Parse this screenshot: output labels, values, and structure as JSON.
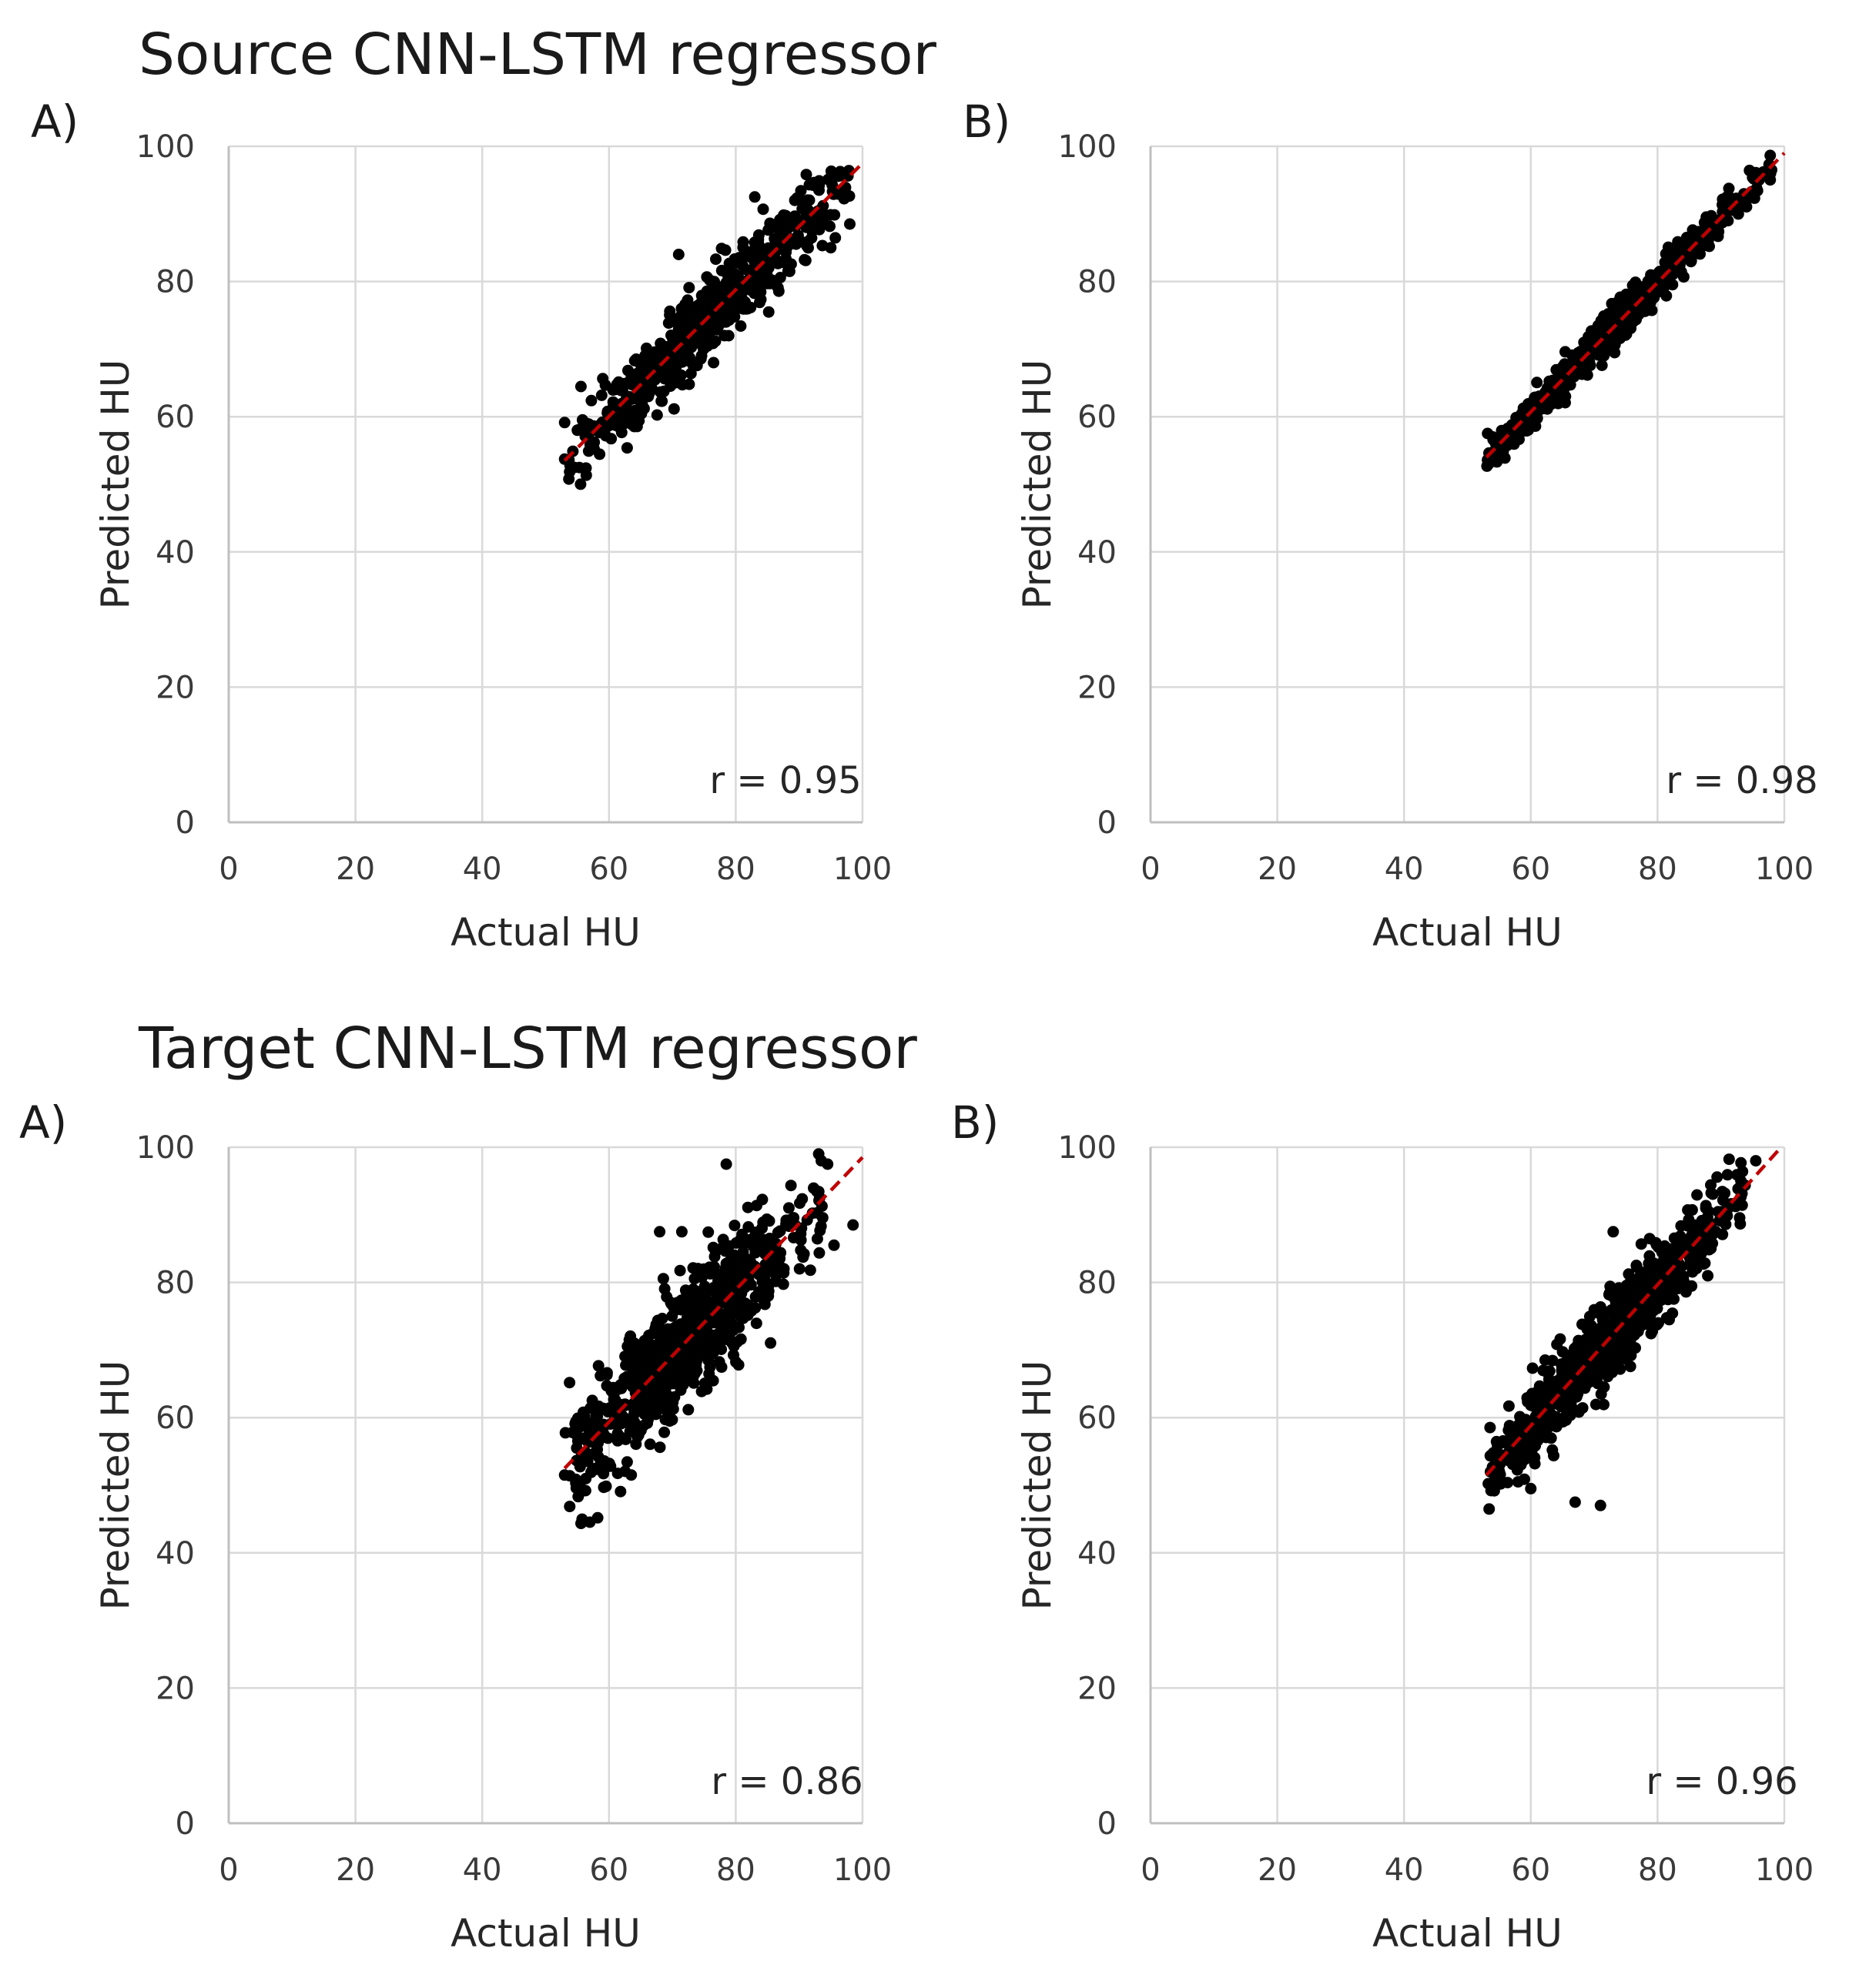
{
  "sections": [
    {
      "title": "Source CNN-LSTM regressor"
    },
    {
      "title": "Target CNN-LSTM regressor"
    }
  ],
  "chart_data": [
    {
      "section": "Source CNN-LSTM regressor",
      "panel": "A)",
      "type": "scatter",
      "xlabel": "Actual HU",
      "ylabel": "Predicted HU",
      "xlim": [
        0,
        100
      ],
      "ylim": [
        0,
        100
      ],
      "xticks": [
        "0",
        "20",
        "40",
        "60",
        "80",
        "100"
      ],
      "yticks": [
        "0",
        "20",
        "40",
        "60",
        "80",
        "100"
      ],
      "grid": true,
      "annotation": "r = 0.95",
      "point_count": 650,
      "x_range": [
        53,
        98
      ],
      "point_spread": 2.8,
      "seed": 11,
      "trendline": {
        "x": [
          53,
          100
        ],
        "y": [
          53.5,
          97.5
        ]
      },
      "outliers": [
        [
          83,
          92.5
        ],
        [
          71,
          84
        ],
        [
          76.5,
          68
        ],
        [
          98,
          88.5
        ],
        [
          95,
          85
        ],
        [
          55,
          58
        ]
      ]
    },
    {
      "section": "Source CNN-LSTM regressor",
      "panel": "B)",
      "type": "scatter",
      "xlabel": "Actual HU",
      "ylabel": "Predicted HU",
      "xlim": [
        0,
        100
      ],
      "ylim": [
        0,
        100
      ],
      "xticks": [
        "0",
        "20",
        "40",
        "60",
        "80",
        "100"
      ],
      "yticks": [
        "0",
        "20",
        "40",
        "60",
        "80",
        "100"
      ],
      "grid": true,
      "annotation": "r = 0.98",
      "point_count": 650,
      "x_range": [
        53,
        98
      ],
      "point_spread": 1.3,
      "seed": 23,
      "trendline": {
        "x": [
          53,
          100
        ],
        "y": [
          54,
          99
        ]
      },
      "outliers": [
        [
          98,
          96.5
        ],
        [
          96,
          95
        ],
        [
          54,
          57
        ]
      ]
    },
    {
      "section": "Target CNN-LSTM regressor",
      "panel": "A)",
      "type": "scatter",
      "xlabel": "Actual HU",
      "ylabel": "Predicted HU",
      "xlim": [
        0,
        100
      ],
      "ylim": [
        0,
        100
      ],
      "xticks": [
        "0",
        "20",
        "40",
        "60",
        "80",
        "100"
      ],
      "yticks": [
        "0",
        "20",
        "40",
        "60",
        "80",
        "100"
      ],
      "grid": true,
      "annotation": "r = 0.86",
      "point_count": 800,
      "x_range": [
        53,
        94
      ],
      "point_spread": 4.5,
      "seed": 37,
      "trendline": {
        "x": [
          53,
          100
        ],
        "y": [
          52.5,
          98.5
        ]
      },
      "outliers": [
        [
          78.5,
          97.5
        ],
        [
          98.5,
          88.5
        ],
        [
          95.5,
          85.5
        ],
        [
          68,
          87.5
        ],
        [
          71.5,
          87.5
        ],
        [
          93.5,
          98
        ],
        [
          94.5,
          97.5
        ],
        [
          53,
          51.5
        ]
      ]
    },
    {
      "section": "Target CNN-LSTM regressor",
      "panel": "B)",
      "type": "scatter",
      "xlabel": "Actual HU",
      "ylabel": "Predicted HU",
      "xlim": [
        0,
        100
      ],
      "ylim": [
        0,
        100
      ],
      "xticks": [
        "0",
        "20",
        "40",
        "60",
        "80",
        "100"
      ],
      "yticks": [
        "0",
        "20",
        "40",
        "60",
        "80",
        "100"
      ],
      "grid": true,
      "annotation": "r = 0.96",
      "point_count": 800,
      "x_range": [
        53,
        94
      ],
      "point_spread": 3.0,
      "seed": 53,
      "trendline": {
        "x": [
          53,
          99.5
        ],
        "y": [
          51.5,
          100
        ]
      },
      "outliers": [
        [
          67,
          47.5
        ],
        [
          71,
          47
        ],
        [
          60,
          49.5
        ],
        [
          58,
          50.5
        ],
        [
          95.5,
          98
        ],
        [
          73,
          87.5
        ]
      ]
    }
  ]
}
